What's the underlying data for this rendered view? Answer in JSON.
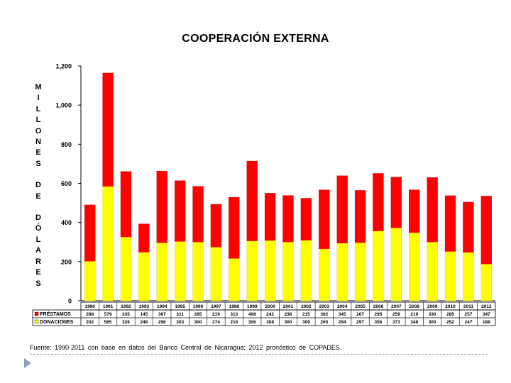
{
  "chart_data": {
    "type": "bar",
    "stacked": true,
    "title": "COOPERACIÓN EXTERNA",
    "ylabel_lines": [
      "MILLONES",
      "DE",
      "DÓLARES"
    ],
    "ylim": [
      0,
      1200
    ],
    "yticks": [
      0,
      200,
      400,
      600,
      800,
      1000,
      1200
    ],
    "ytick_labels": [
      "0",
      "200",
      "400",
      "600",
      "800",
      "1,000",
      "1,200"
    ],
    "categories": [
      "1990",
      "1991",
      "1992",
      "1993",
      "1994",
      "1995",
      "1996",
      "1997",
      "1998",
      "1999",
      "2000",
      "2001",
      "2002",
      "2003",
      "2004",
      "2005",
      "2006",
      "2007",
      "2008",
      "2009",
      "2010",
      "2011",
      "2012"
    ],
    "series": [
      {
        "name": "DONACIONES",
        "color": "#ffff00",
        "values": [
          202,
          585,
          326,
          248,
          296,
          303,
          300,
          274,
          216,
          306,
          308,
          300,
          309,
          265,
          294,
          297,
          356,
          373,
          348,
          300,
          252,
          247,
          188
        ]
      },
      {
        "name": "PRÉSTAMOS",
        "color": "#ff0000",
        "values": [
          288,
          579,
          335,
          145,
          367,
          311,
          285,
          219,
          313,
          408,
          242,
          238,
          215,
          302,
          345,
          267,
          295,
          259,
          219,
          330,
          285,
          257,
          347
        ]
      }
    ],
    "legend_position": "table-left",
    "source": "Fuente: 1990-2011 con base en datos del Banco Central de Nicaragua; 2012 pronóstico de COPADES."
  }
}
